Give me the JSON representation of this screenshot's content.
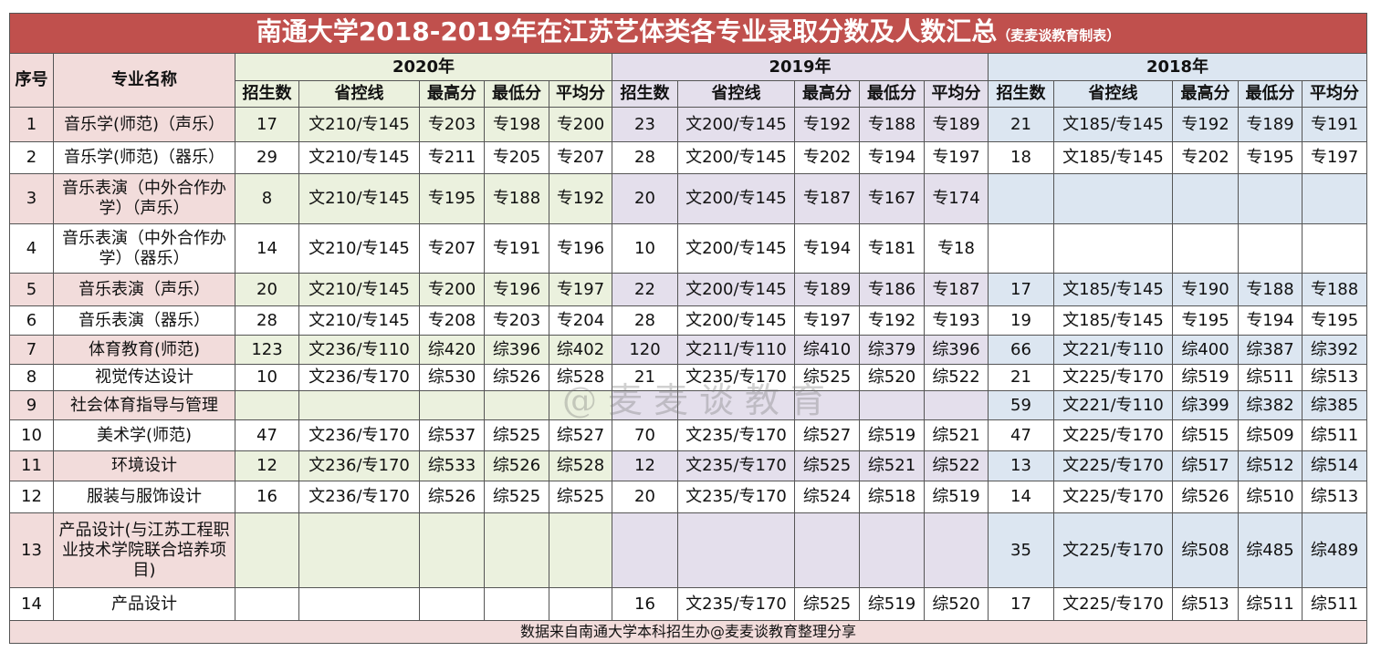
{
  "header": {
    "title": "南通大学2018-2019年在江苏艺体类各专业录取分数及人数汇总",
    "note": "（麦麦谈教育制表）"
  },
  "table": {
    "columns": [
      "序号",
      "专业名称"
    ],
    "groups": [
      "2020年",
      "2019年",
      "2018年"
    ],
    "subcolumns": [
      "招生数",
      "省控线",
      "最高分",
      "最低分",
      "平均分"
    ],
    "rows": [
      [
        1,
        "音乐学(师范)（声乐）",
        17,
        "文210/专145",
        "专203",
        "专198",
        "专200",
        23,
        "文200/专145",
        "专192",
        "专188",
        "专189",
        21,
        "文185/专145",
        "专192",
        "专189",
        "专191"
      ],
      [
        2,
        "音乐学(师范)（器乐）",
        29,
        "文210/专145",
        "专211",
        "专205",
        "专207",
        28,
        "文200/专145",
        "专202",
        "专194",
        "专197",
        18,
        "文185/专145",
        "专202",
        "专195",
        "专197"
      ],
      [
        3,
        "音乐表演（中外合作办学）（声乐）",
        8,
        "文210/专145",
        "专195",
        "专188",
        "专192",
        20,
        "文200/专145",
        "专187",
        "专167",
        "专174",
        null,
        null,
        null,
        null,
        null
      ],
      [
        4,
        "音乐表演（中外合作办学）（器乐）",
        14,
        "文210/专145",
        "专207",
        "专191",
        "专196",
        10,
        "文200/专145",
        "专194",
        "专181",
        "专18",
        null,
        null,
        null,
        null,
        null
      ],
      [
        5,
        "音乐表演（声乐）",
        20,
        "文210/专145",
        "专200",
        "专196",
        "专197",
        22,
        "文200/专145",
        "专189",
        "专186",
        "专187",
        17,
        "文185/专145",
        "专190",
        "专188",
        "专188"
      ],
      [
        6,
        "音乐表演（器乐）",
        28,
        "文210/专145",
        "专208",
        "专203",
        "专204",
        28,
        "文200/专145",
        "专197",
        "专192",
        "专193",
        19,
        "文185/专145",
        "专195",
        "专194",
        "专195"
      ],
      [
        7,
        "体育教育(师范)",
        123,
        "文236/专110",
        "综420",
        "综396",
        "综402",
        120,
        "文211/专110",
        "综410",
        "综379",
        "综396",
        66,
        "文221/专110",
        "综400",
        "综387",
        "综392"
      ],
      [
        8,
        "视觉传达设计",
        10,
        "文236/专170",
        "综530",
        "综526",
        "综528",
        21,
        "文235/专170",
        "综525",
        "综520",
        "综522",
        21,
        "文225/专170",
        "综519",
        "综511",
        "综513"
      ],
      [
        9,
        "社会体育指导与管理",
        null,
        null,
        null,
        null,
        null,
        null,
        null,
        null,
        null,
        null,
        59,
        "文221/专110",
        "综399",
        "综382",
        "综385"
      ],
      [
        10,
        "美术学(师范)",
        47,
        "文236/专170",
        "综537",
        "综525",
        "综527",
        70,
        "文235/专170",
        "综527",
        "综519",
        "综521",
        47,
        "文225/专170",
        "综515",
        "综509",
        "综511"
      ],
      [
        11,
        "环境设计",
        12,
        "文236/专170",
        "综533",
        "综526",
        "综528",
        12,
        "文235/专170",
        "综525",
        "综521",
        "综522",
        13,
        "文225/专170",
        "综517",
        "综512",
        "综514"
      ],
      [
        12,
        "服装与服饰设计",
        16,
        "文236/专170",
        "综526",
        "综525",
        "综525",
        20,
        "文235/专170",
        "综524",
        "综518",
        "综519",
        14,
        "文225/专170",
        "综526",
        "综510",
        "综513"
      ],
      [
        13,
        "产品设计(与江苏工程职业技术学院联合培养项目)",
        null,
        null,
        null,
        null,
        null,
        null,
        null,
        null,
        null,
        null,
        35,
        "文225/专170",
        "综508",
        "综485",
        "综489"
      ],
      [
        14,
        "产品设计",
        null,
        null,
        null,
        null,
        null,
        16,
        "文235/专170",
        "综525",
        "综519",
        "综520",
        17,
        "文225/专170",
        "综513",
        "综511",
        "综511"
      ]
    ]
  },
  "watermark": "@麦麦谈教育",
  "footer": "数据来自南通大学本科招生办@麦麦谈教育整理分享"
}
